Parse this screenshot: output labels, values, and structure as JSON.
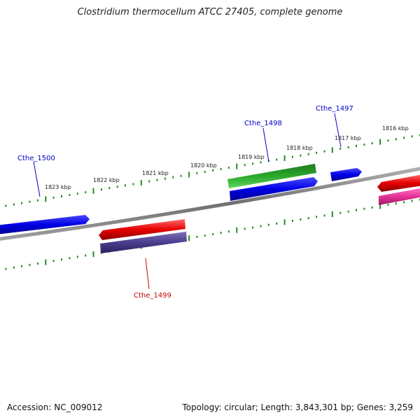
{
  "title": "Clostridium thermocellum ATCC 27405, complete genome",
  "accession": "Accession: NC_009012",
  "summary": "Topology: circular; Length: 3,843,301 bp; Genes: 3,259",
  "colors": {
    "backbone": "#808080",
    "ticks": "#1e8c1e",
    "label_blue": "#0000c8",
    "label_red": "#c80000"
  },
  "ruler": {
    "labels": [
      "1823 kbp",
      "1822 kbp",
      "1821 kbp",
      "1820 kbp",
      "1819 kbp",
      "1818 kbp",
      "1817 kbp",
      "1816 kbp"
    ]
  },
  "gene_labels": {
    "cthe_1500": "Cthe_1500",
    "cthe_1499": "Cthe_1499",
    "cthe_1498": "Cthe_1498",
    "cthe_1497": "Cthe_1497"
  },
  "features": [
    {
      "name": "gene-blue-left",
      "color": "#0000e6"
    },
    {
      "name": "gene-red-middle",
      "color": "#e60000"
    },
    {
      "name": "gene-purple-middle",
      "color": "#4b3c8c"
    },
    {
      "name": "gene-green-right",
      "color": "#2aa82a"
    },
    {
      "name": "gene-blue-right",
      "color": "#0000e6"
    },
    {
      "name": "gene-blue-small",
      "color": "#0000e6"
    },
    {
      "name": "gene-red-far-right",
      "color": "#e60000"
    },
    {
      "name": "gene-pink-far-right",
      "color": "#e6329a"
    }
  ]
}
